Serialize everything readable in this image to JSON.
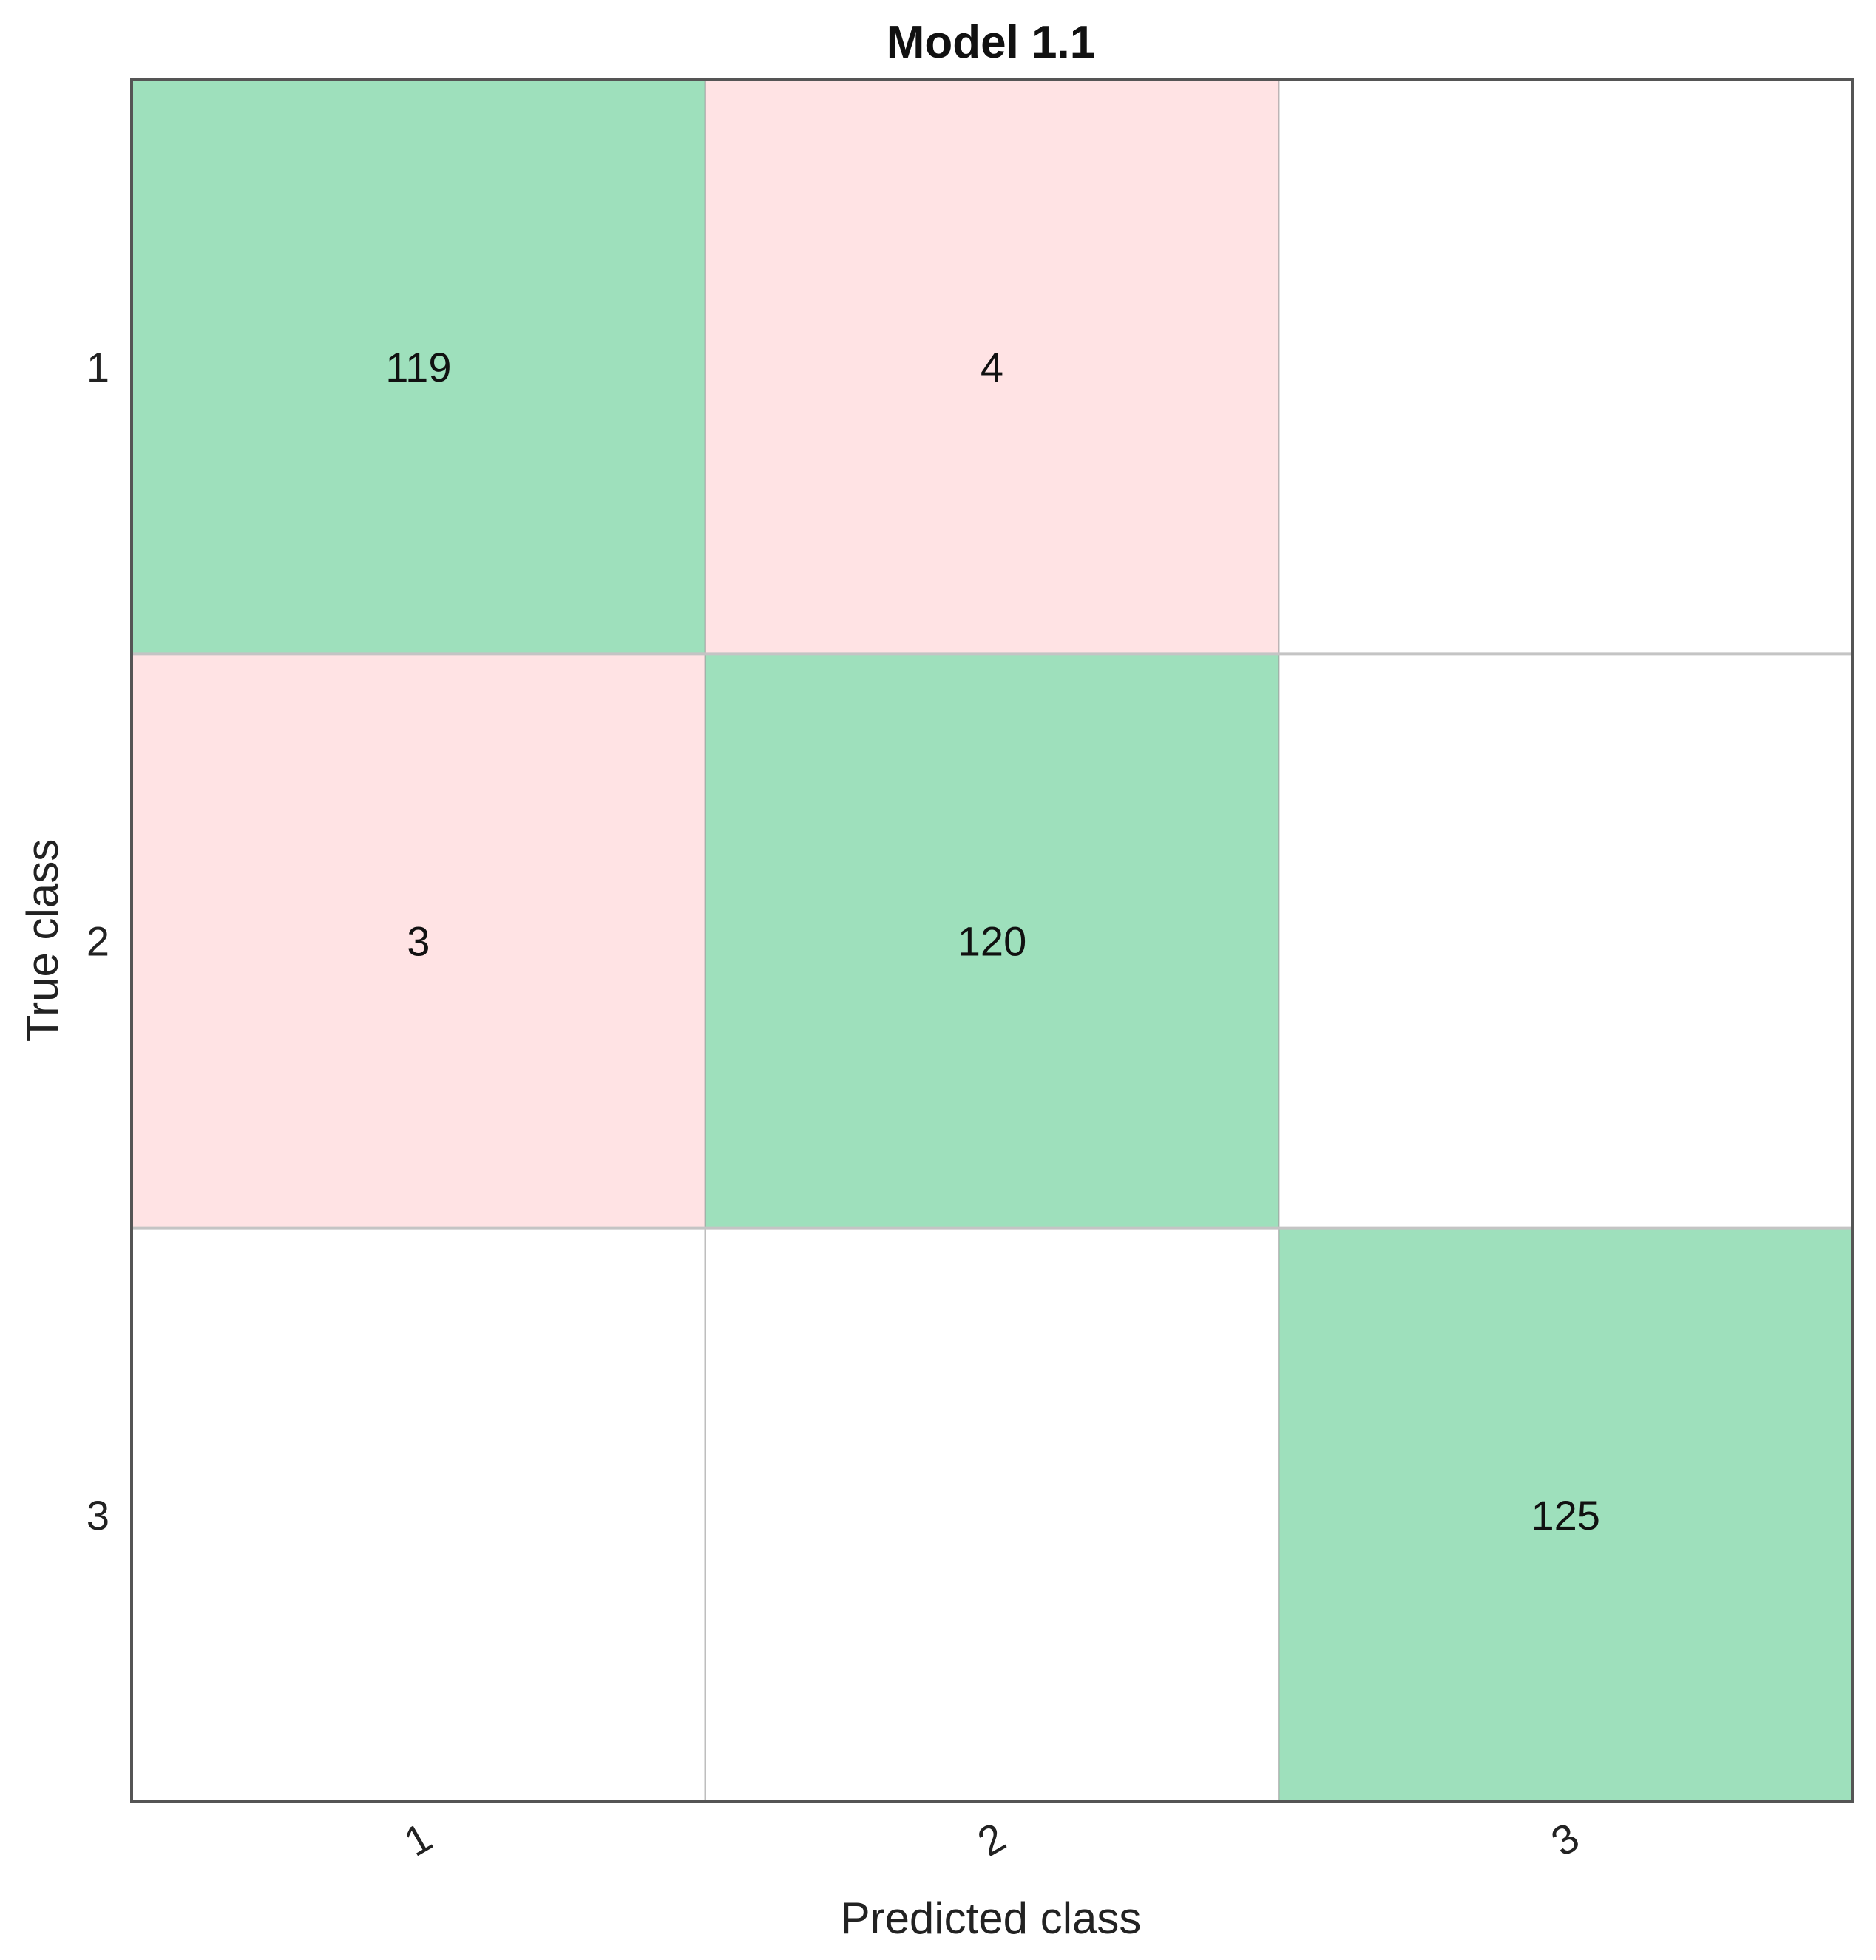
{
  "chart_data": {
    "type": "heatmap",
    "title": "Model 1.1",
    "xlabel": "Predicted class",
    "ylabel": "True class",
    "x_categories": [
      "1",
      "2",
      "3"
    ],
    "y_categories": [
      "1",
      "2",
      "3"
    ],
    "values": [
      [
        119,
        4,
        null
      ],
      [
        3,
        120,
        null
      ],
      [
        null,
        null,
        125
      ]
    ],
    "grid": true,
    "colors": {
      "correct": "#9ee0bc",
      "incorrect": "#ffe3e4",
      "empty": "#ffffff",
      "grid": "#9e9e9e",
      "axis": "#555555",
      "text": "#111111"
    }
  }
}
